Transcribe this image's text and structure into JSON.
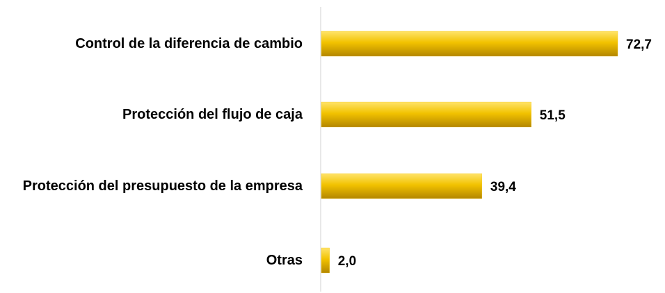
{
  "chart_data": {
    "type": "hbar",
    "categories": [
      "Control de la diferencia de cambio",
      "Protección del flujo de caja",
      "Protección del presupuesto de la empresa",
      "Otras"
    ],
    "values": [
      72.7,
      51.5,
      39.4,
      2.0
    ],
    "value_labels": [
      "72,7",
      "51,5",
      "39,4",
      "2,0"
    ],
    "color": "#f2c200"
  }
}
